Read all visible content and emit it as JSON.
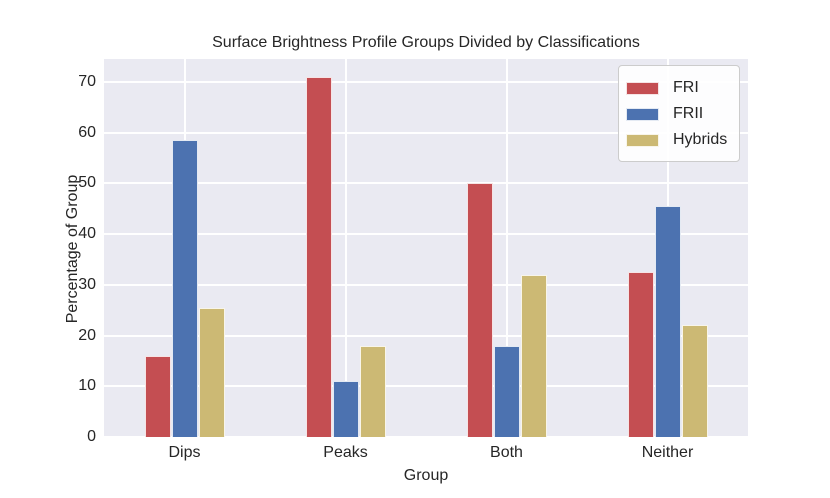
{
  "chart_data": {
    "type": "bar",
    "title": "Surface Brightness Profile Groups Divided by Classifications",
    "xlabel": "Group",
    "ylabel": "Percentage of Group",
    "categories": [
      "Dips",
      "Peaks",
      "Both",
      "Neither"
    ],
    "series": [
      {
        "name": "FRI",
        "color": "#c44e52",
        "values": [
          16.0,
          71.0,
          50.0,
          32.5
        ]
      },
      {
        "name": "FRII",
        "color": "#4c72b0",
        "values": [
          58.5,
          11.0,
          18.0,
          45.5
        ]
      },
      {
        "name": "Hybrids",
        "color": "#ccb974",
        "values": [
          25.5,
          18.0,
          32.0,
          22.0
        ]
      }
    ],
    "yticks": [
      0,
      10,
      20,
      30,
      40,
      50,
      60,
      70
    ],
    "ylim": [
      0,
      74.5
    ],
    "grid": true,
    "legend_position": "upper right",
    "style": {
      "plot_background": "#eaeaf2",
      "grid_color": "#ffffff",
      "text_color": "#262626",
      "legend_background": "rgba(255,255,255,0.9)",
      "legend_border": "#cccccc"
    }
  }
}
